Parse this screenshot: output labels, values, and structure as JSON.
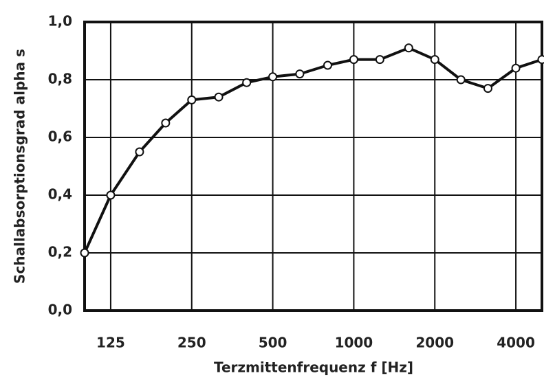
{
  "chart_data": {
    "type": "line",
    "x_label": "Terzmittenfrequenz f [Hz]",
    "y_label": "Schallabsorptionsgrad alpha s",
    "x": [
      100,
      125,
      160,
      200,
      250,
      315,
      400,
      500,
      630,
      800,
      1000,
      1250,
      1600,
      2000,
      2500,
      3150,
      4000,
      5000
    ],
    "series": [
      {
        "name": "alpha s",
        "color": "#111111",
        "values": [
          0.2,
          0.4,
          0.55,
          0.65,
          0.73,
          0.74,
          0.79,
          0.81,
          0.82,
          0.85,
          0.87,
          0.87,
          0.91,
          0.87,
          0.8,
          0.77,
          0.84,
          0.87
        ]
      }
    ],
    "xscale": "log",
    "xlim": [
      100,
      5000
    ],
    "xticks": [
      125,
      250,
      500,
      1000,
      2000,
      4000
    ],
    "ylim": [
      0,
      1
    ],
    "yticks": [
      {
        "value": 0,
        "label": "0,0"
      },
      {
        "value": 0.2,
        "label": "0,2"
      },
      {
        "value": 0.4,
        "label": "0,4"
      },
      {
        "value": 0.6,
        "label": "0,6"
      },
      {
        "value": 0.8,
        "label": "0,8"
      },
      {
        "value": 1,
        "label": "1,0"
      }
    ],
    "grid": true
  }
}
